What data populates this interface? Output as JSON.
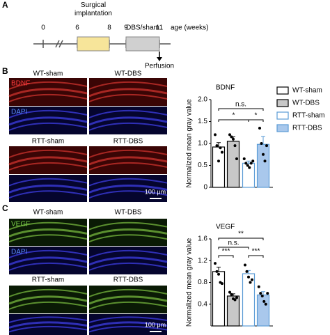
{
  "panels": {
    "a": "A",
    "b": "B",
    "c": "C"
  },
  "timeline": {
    "ticks": [
      "0",
      "6",
      "8",
      "9",
      "11"
    ],
    "unit": "age (weeks)",
    "surgery": "Surgical implantation",
    "dbs": "DBS/sham",
    "end": "Perfusion"
  },
  "images": [
    {
      "top_labels": [
        "WT-sham",
        "WT-DBS"
      ],
      "bottom_labels": [
        "RTT-sham",
        "RTT-DBS"
      ],
      "stain": "BDNF",
      "dapi": "DAPI",
      "scale": "100 μm"
    },
    {
      "top_labels": [
        "WT-sham",
        "WT-DBS"
      ],
      "bottom_labels": [
        "RTT-sham",
        "RTT-DBS"
      ],
      "stain": "VEGF",
      "dapi": "DAPI",
      "scale": "100 μm"
    }
  ],
  "chart_data": [
    {
      "type": "bar",
      "title": "BDNF",
      "ylabel": "Normalized mean gray value",
      "categories": [
        "WT-sham",
        "WT-DBS",
        "RTT-sham",
        "RTT-DBS"
      ],
      "values": [
        0.92,
        1.05,
        0.55,
        0.98
      ],
      "errors": [
        0.1,
        0.1,
        0.05,
        0.18
      ],
      "points": [
        [
          1.2,
          0.95,
          0.6,
          0.9,
          0.8
        ],
        [
          1.2,
          1.15,
          1.1,
          0.95,
          0.65
        ],
        [
          0.65,
          0.55,
          0.5,
          0.45,
          0.55,
          0.6
        ],
        [
          1.35,
          1.0,
          0.75,
          0.6,
          0.95
        ]
      ],
      "colors": [
        "#ffffff",
        "#c8c8c8",
        "#ffffff",
        "#a9c8ec"
      ],
      "edge_colors": [
        "#000000",
        "#000000",
        "#5b9bd5",
        "#5b9bd5"
      ],
      "ylim": [
        0,
        2.0
      ],
      "yticks": [
        0,
        0.5,
        {
          "value": 1.0,
          "label": "1.0"
        },
        1.5,
        {
          "value": 2.0,
          "label": "2.0"
        }
      ],
      "annotations": [
        "n.s.",
        "*",
        "*"
      ],
      "legend": true
    },
    {
      "type": "bar",
      "title": "VEGF",
      "ylabel": "Normalized mean gray value",
      "categories": [
        "WT-sham",
        "WT-DBS",
        "RTT-sham",
        "RTT-DBS"
      ],
      "values": [
        1.0,
        0.55,
        0.96,
        0.57
      ],
      "errors": [
        0.08,
        0.04,
        0.06,
        0.06
      ],
      "points": [
        [
          1.15,
          1.0,
          0.95,
          0.8,
          0.78
        ],
        [
          0.62,
          0.58,
          0.5,
          0.48,
          0.52
        ],
        [
          1.12,
          1.0,
          0.9,
          0.8,
          0.85
        ],
        [
          0.72,
          0.6,
          0.55,
          0.45,
          0.4,
          0.6
        ]
      ],
      "colors": [
        "#ffffff",
        "#c8c8c8",
        "#ffffff",
        "#a9c8ec"
      ],
      "edge_colors": [
        "#000000",
        "#000000",
        "#5b9bd5",
        "#5b9bd5"
      ],
      "ylim": [
        0,
        1.6
      ],
      "yticks": [
        0.4,
        0.8,
        1.2,
        1.6
      ],
      "annotations": [
        "**",
        "n.s.",
        "***",
        "***"
      ],
      "legend": false
    }
  ]
}
